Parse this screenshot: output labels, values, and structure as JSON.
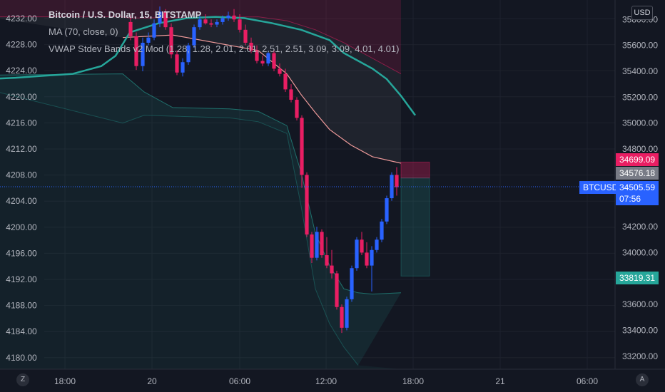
{
  "header": {
    "title": "Bitcoin / U.S. Dollar, 15, BITSTAMP",
    "indicator_ma": "MA (70, close, 0)",
    "indicator_vwap": "VWAP Stdev Bands v2 Mod (1.28, 1.28, 2.01, 2.01, 2.51, 2.51, 3.09, 3.09, 4.01, 4.01)"
  },
  "controls": {
    "currency_button": "USD",
    "log_button": "Z",
    "auto_button": "A"
  },
  "price_tags": {
    "upper_band": "34699.09",
    "last_vwap": "34576.18",
    "symbol": "BTCUSD",
    "current_price": "34505.59",
    "countdown": "07:56",
    "lower_target": "33819.31"
  },
  "colors": {
    "background": "#131722",
    "up_candle": "#2962ff",
    "down_candle": "#e91e63",
    "ma_line": "#26a69a",
    "upper_band_tag": "#e91e63",
    "last_tag": "#787b86",
    "symbol_tag": "#2962ff",
    "lower_tag": "#26a69a"
  },
  "chart_data": {
    "type": "candlestick",
    "left_axis_ticks": [
      "4232.00",
      "4228.00",
      "4224.00",
      "4220.00",
      "4216.00",
      "4212.00",
      "4208.00",
      "4204.00",
      "4200.00",
      "4196.00",
      "4192.00",
      "4188.00",
      "4184.00",
      "4180.00"
    ],
    "right_axis_ticks": [
      "35800.00",
      "35600.00",
      "35400.00",
      "35200.00",
      "35000.00",
      "34800.00",
      "34400.00",
      "34200.00",
      "34000.00",
      "33800.00",
      "33600.00",
      "33400.00",
      "33200.00"
    ],
    "x_ticks": [
      "18:00",
      "20",
      "06:00",
      "12:00",
      "18:00",
      "21",
      "06:00"
    ],
    "x_range_hours": [
      15,
      55
    ],
    "ylim": [
      33100,
      35950
    ],
    "ma_line": [
      [
        11,
        35340
      ],
      [
        13,
        35350
      ],
      [
        15,
        35365
      ],
      [
        17,
        35380
      ],
      [
        19,
        35440
      ],
      [
        20,
        35520
      ],
      [
        21,
        35700
      ],
      [
        23,
        35770
      ],
      [
        25,
        35810
      ],
      [
        27,
        35820
      ],
      [
        29,
        35810
      ],
      [
        31,
        35770
      ],
      [
        33,
        35720
      ],
      [
        35,
        35640
      ],
      [
        36,
        35540
      ],
      [
        37,
        35480
      ],
      [
        38,
        35420
      ],
      [
        39,
        35340
      ],
      [
        40,
        35210
      ],
      [
        41,
        35060
      ]
    ],
    "vwap_upper_outer": [
      [
        11,
        35820
      ],
      [
        20.5,
        35820
      ],
      [
        21,
        35810
      ],
      [
        30,
        35820
      ],
      [
        32,
        35790
      ],
      [
        34,
        35720
      ],
      [
        36,
        35620
      ],
      [
        38,
        35500
      ],
      [
        40,
        35380
      ]
    ],
    "vwap_upper_inner": [
      [
        20.5,
        35660
      ],
      [
        24,
        35680
      ],
      [
        30,
        35560
      ],
      [
        32,
        35380
      ],
      [
        33,
        35220
      ],
      [
        34,
        35080
      ],
      [
        35,
        34950
      ],
      [
        36.5,
        34830
      ],
      [
        38,
        34740
      ],
      [
        40,
        34690
      ]
    ],
    "vwap_lower_inner": [
      [
        11,
        35370
      ],
      [
        20.5,
        35380
      ],
      [
        22,
        35240
      ],
      [
        24,
        35120
      ],
      [
        28,
        35110
      ],
      [
        30,
        35090
      ],
      [
        32,
        34980
      ],
      [
        33,
        34620
      ],
      [
        34,
        34150
      ],
      [
        35,
        33900
      ],
      [
        36,
        33720
      ],
      [
        37,
        33690
      ],
      [
        38,
        33680
      ],
      [
        40,
        33690
      ]
    ],
    "vwap_lower_outer": [
      [
        11,
        35260
      ],
      [
        20.5,
        35000
      ],
      [
        22,
        35060
      ],
      [
        28,
        35040
      ],
      [
        30,
        35010
      ],
      [
        32,
        34920
      ],
      [
        33,
        34360
      ],
      [
        34,
        33720
      ],
      [
        35,
        33450
      ],
      [
        36,
        33270
      ],
      [
        37,
        33130
      ]
    ],
    "candles": [
      [
        21.05,
        35780,
        35830,
        35640,
        35670
      ],
      [
        21.45,
        35670,
        35700,
        35410,
        35440
      ],
      [
        21.9,
        35440,
        35660,
        35400,
        35620
      ],
      [
        22.3,
        35620,
        35700,
        35600,
        35660
      ],
      [
        22.7,
        35660,
        35800,
        35640,
        35770
      ],
      [
        23.1,
        35770,
        35900,
        35740,
        35860
      ],
      [
        23.5,
        35860,
        35880,
        35720,
        35740
      ],
      [
        23.9,
        35740,
        35770,
        35500,
        35530
      ],
      [
        24.3,
        35530,
        35560,
        35370,
        35390
      ],
      [
        24.7,
        35390,
        35500,
        35360,
        35470
      ],
      [
        25.1,
        35470,
        35620,
        35450,
        35600
      ],
      [
        25.5,
        35600,
        35760,
        35580,
        35740
      ],
      [
        25.9,
        35740,
        35830,
        35720,
        35800
      ],
      [
        26.3,
        35800,
        35840,
        35760,
        35770
      ],
      [
        26.7,
        35770,
        35800,
        35740,
        35760
      ],
      [
        27.1,
        35760,
        35800,
        35740,
        35780
      ],
      [
        27.5,
        35780,
        35830,
        35760,
        35810
      ],
      [
        27.9,
        35810,
        35860,
        35790,
        35830
      ],
      [
        28.3,
        35830,
        35880,
        35780,
        35800
      ],
      [
        28.7,
        35800,
        35840,
        35700,
        35720
      ],
      [
        29.1,
        35720,
        35760,
        35600,
        35620
      ],
      [
        29.5,
        35620,
        35660,
        35540,
        35560
      ],
      [
        29.9,
        35560,
        35600,
        35460,
        35480
      ],
      [
        30.3,
        35480,
        35520,
        35440,
        35460
      ],
      [
        30.7,
        35460,
        35560,
        35440,
        35540
      ],
      [
        31.1,
        35540,
        35560,
        35400,
        35420
      ],
      [
        31.5,
        35420,
        35460,
        35360,
        35380
      ],
      [
        31.9,
        35380,
        35420,
        35240,
        35260
      ],
      [
        32.3,
        35260,
        35300,
        35160,
        35180
      ],
      [
        32.7,
        35180,
        35200,
        35020,
        35040
      ],
      [
        33.05,
        35040,
        35060,
        34500,
        34600
      ],
      [
        33.4,
        34600,
        34620,
        34120,
        34140
      ],
      [
        33.75,
        34140,
        34160,
        33920,
        33960
      ],
      [
        34.1,
        33960,
        34200,
        33940,
        34160
      ],
      [
        34.45,
        34160,
        34180,
        33960,
        33980
      ],
      [
        34.8,
        33980,
        34120,
        33880,
        33900
      ],
      [
        35.15,
        33900,
        34020,
        33800,
        33840
      ],
      [
        35.5,
        33840,
        33860,
        33560,
        33580
      ],
      [
        35.85,
        33580,
        33600,
        33380,
        33420
      ],
      [
        36.2,
        33420,
        33660,
        33400,
        33640
      ],
      [
        36.55,
        33640,
        33900,
        33620,
        33880
      ],
      [
        36.9,
        33880,
        34120,
        33860,
        34100
      ],
      [
        37.25,
        34100,
        34160,
        33980,
        34000
      ],
      [
        37.6,
        34000,
        34080,
        33880,
        33900
      ],
      [
        37.95,
        33900,
        34050,
        33700,
        34020
      ],
      [
        38.3,
        34020,
        34120,
        34000,
        34100
      ],
      [
        38.65,
        34100,
        34260,
        34080,
        34240
      ],
      [
        39.0,
        34240,
        34440,
        34220,
        34420
      ],
      [
        39.35,
        34420,
        34620,
        34400,
        34600
      ],
      [
        39.7,
        34600,
        34660,
        34440,
        34505
      ]
    ],
    "target_box_upper": [
      34699,
      34576
    ],
    "target_box_lower": [
      34576,
      33819
    ]
  }
}
